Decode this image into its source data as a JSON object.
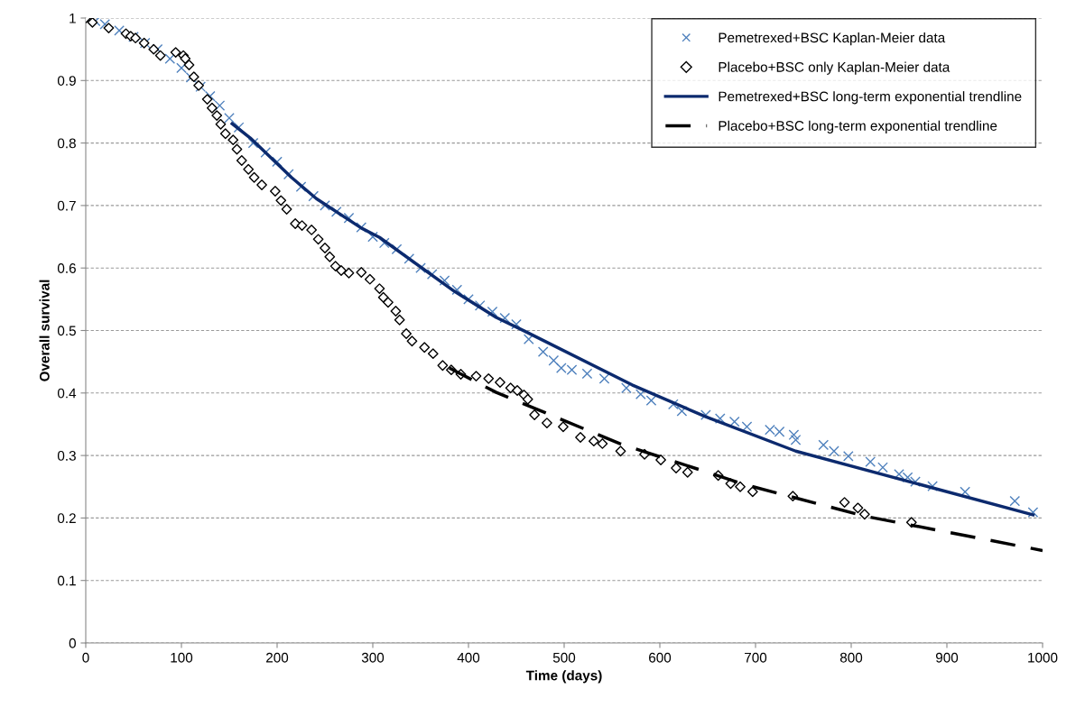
{
  "chart_data": {
    "type": "scatter",
    "xlabel": "Time (days)",
    "ylabel": "Overall survival",
    "xlim": [
      0,
      1000
    ],
    "xticks": [
      0,
      100,
      200,
      300,
      400,
      500,
      600,
      700,
      800,
      900,
      1000
    ],
    "ylim": [
      0,
      1
    ],
    "yticks": [
      0,
      0.1,
      0.2,
      0.3,
      0.4,
      0.5,
      0.6,
      0.7,
      0.8,
      0.9,
      1
    ],
    "grid": "y",
    "legend": "top right",
    "series": [
      {
        "name": "Pemetrexed+BSC Kaplan-Meier data",
        "marker": "cross",
        "color": "#4f81bd",
        "x": [
          0,
          10,
          20,
          35,
          50,
          62,
          75,
          88,
          100,
          110,
          120,
          130,
          140,
          150,
          160,
          175,
          188,
          200,
          212,
          225,
          238,
          250,
          262,
          275,
          288,
          300,
          312,
          325,
          338,
          350,
          362,
          375,
          388,
          400,
          412,
          425,
          438,
          450,
          463,
          478,
          489,
          497,
          508,
          524,
          542,
          565,
          580,
          591,
          614,
          623,
          648,
          663,
          678,
          691,
          715,
          725,
          740,
          742,
          771,
          782,
          797,
          820,
          833,
          850,
          859,
          867,
          885,
          919,
          971,
          990
        ],
        "values": [
          1.0,
          0.995,
          0.99,
          0.98,
          0.97,
          0.96,
          0.95,
          0.935,
          0.92,
          0.905,
          0.89,
          0.875,
          0.86,
          0.84,
          0.825,
          0.8,
          0.785,
          0.77,
          0.75,
          0.73,
          0.715,
          0.7,
          0.69,
          0.68,
          0.665,
          0.65,
          0.64,
          0.63,
          0.615,
          0.6,
          0.59,
          0.58,
          0.565,
          0.55,
          0.54,
          0.53,
          0.52,
          0.51,
          0.486,
          0.466,
          0.452,
          0.44,
          0.437,
          0.431,
          0.423,
          0.408,
          0.398,
          0.388,
          0.382,
          0.371,
          0.365,
          0.359,
          0.354,
          0.346,
          0.341,
          0.338,
          0.333,
          0.325,
          0.317,
          0.307,
          0.299,
          0.29,
          0.281,
          0.27,
          0.265,
          0.258,
          0.251,
          0.242,
          0.227,
          0.209
        ]
      },
      {
        "name": "Placebo+BSC only Kaplan-Meier data",
        "marker": "diamond",
        "color": "#000000",
        "x": [
          0,
          7,
          24,
          42,
          47,
          52,
          61,
          71,
          78,
          94,
          102,
          104,
          108,
          113,
          118,
          127,
          132,
          137,
          141,
          146,
          154,
          158,
          163,
          170,
          176,
          184,
          198,
          204,
          210,
          219,
          226,
          236,
          243,
          250,
          255,
          261,
          267,
          275,
          288,
          297,
          307,
          311,
          316,
          324,
          328,
          335,
          341,
          354,
          363,
          373,
          382,
          392,
          408,
          421,
          433,
          444,
          451,
          458,
          462,
          469,
          482,
          499,
          517,
          531,
          540,
          559,
          584,
          601,
          617,
          629,
          661,
          674,
          684,
          697,
          739,
          793,
          807,
          814,
          863
        ],
        "values": [
          1.0,
          0.993,
          0.984,
          0.975,
          0.971,
          0.968,
          0.96,
          0.95,
          0.94,
          0.945,
          0.94,
          0.935,
          0.925,
          0.906,
          0.892,
          0.87,
          0.856,
          0.844,
          0.83,
          0.815,
          0.805,
          0.79,
          0.772,
          0.758,
          0.745,
          0.733,
          0.723,
          0.708,
          0.694,
          0.671,
          0.668,
          0.661,
          0.646,
          0.632,
          0.618,
          0.603,
          0.596,
          0.592,
          0.593,
          0.582,
          0.567,
          0.553,
          0.545,
          0.531,
          0.517,
          0.495,
          0.483,
          0.473,
          0.463,
          0.444,
          0.437,
          0.43,
          0.427,
          0.423,
          0.417,
          0.408,
          0.404,
          0.397,
          0.39,
          0.365,
          0.352,
          0.346,
          0.329,
          0.323,
          0.319,
          0.307,
          0.302,
          0.293,
          0.28,
          0.273,
          0.268,
          0.255,
          0.25,
          0.242,
          0.235,
          0.225,
          0.216,
          0.206,
          0.193
        ]
      },
      {
        "name": "Pemetrexed+BSC long-term exponential trendline",
        "type": "line",
        "line_style": "solid",
        "color": "#0c2a6e",
        "x": [
          153,
          172,
          215,
          241,
          288,
          307,
          385,
          429,
          460,
          571,
          648,
          742,
          990
        ],
        "values": [
          0.831,
          0.808,
          0.745,
          0.711,
          0.664,
          0.649,
          0.563,
          0.521,
          0.498,
          0.413,
          0.362,
          0.307,
          0.205
        ]
      },
      {
        "name": "Placebo+BSC long-term exponential trendline",
        "type": "line",
        "line_style": "dashed",
        "color": "#000000",
        "x": [
          380,
          429,
          558,
          690,
          814,
          1000
        ],
        "values": [
          0.44,
          0.401,
          0.319,
          0.253,
          0.203,
          0.148
        ]
      }
    ]
  }
}
